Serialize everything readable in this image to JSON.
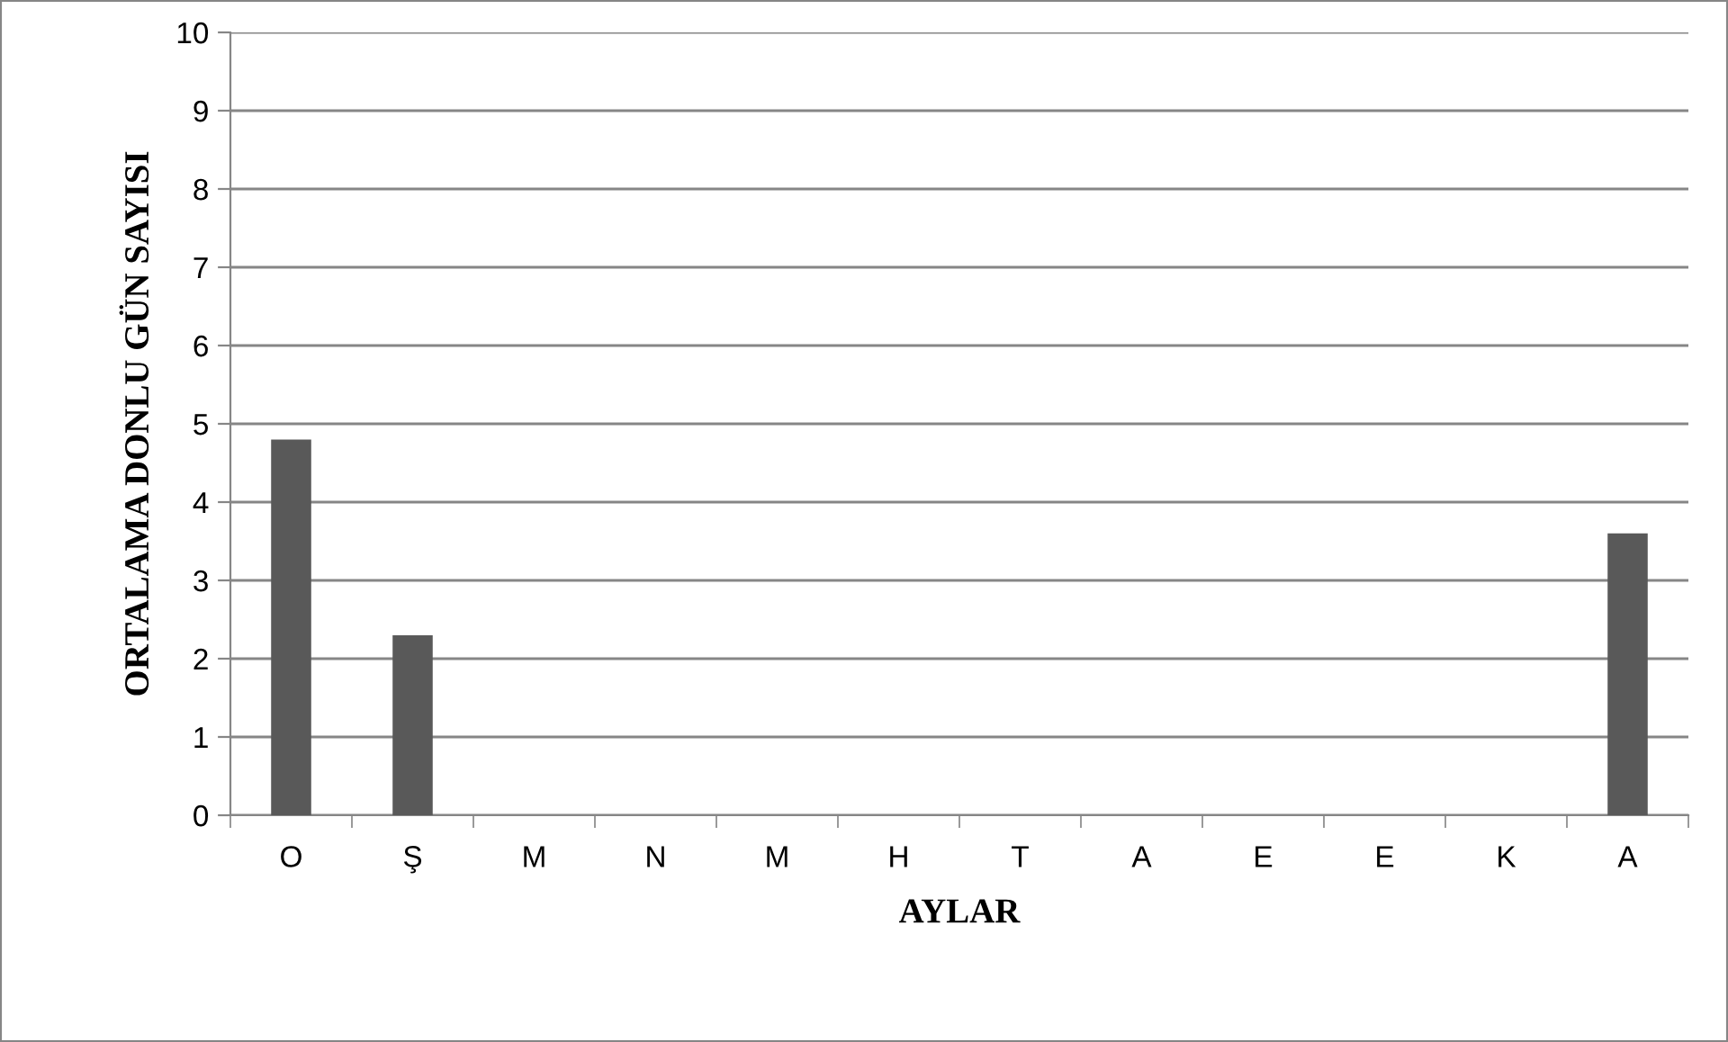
{
  "chart_data": {
    "type": "bar",
    "xlabel": "AYLAR",
    "ylabel": "ORTALAMA DONLU GÜN SAYISI",
    "categories": [
      "O",
      "Ş",
      "M",
      "N",
      "M",
      "H",
      "T",
      "A",
      "E",
      "E",
      "K",
      "A"
    ],
    "values": [
      4.8,
      2.3,
      0,
      0,
      0,
      0,
      0,
      0,
      0,
      0,
      0,
      3.6
    ],
    "color": "#595959",
    "ylim": [
      0,
      10
    ],
    "yticks": [
      0,
      1,
      2,
      3,
      4,
      5,
      6,
      7,
      8,
      9,
      10
    ],
    "grid": "y",
    "legend": false
  }
}
